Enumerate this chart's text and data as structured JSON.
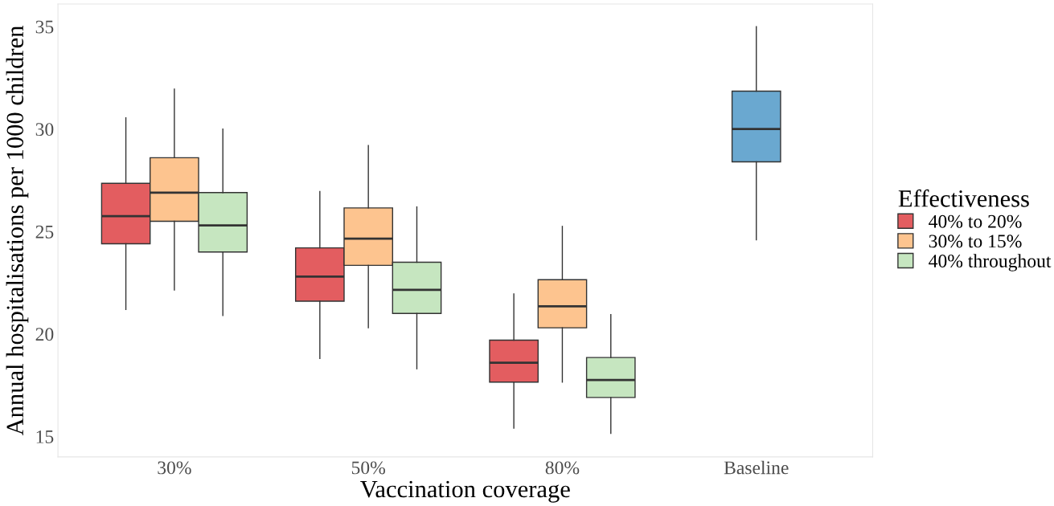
{
  "chart_data": {
    "type": "box",
    "xlabel": "Vaccination coverage",
    "ylabel": "Annual hospitalisations per 1000 children",
    "legend_title": "Effectiveness",
    "legend": "right",
    "grid": false,
    "categories": [
      "30%",
      "50%",
      "80%",
      "Baseline"
    ],
    "ylim": [
      14,
      36.1
    ],
    "yticks": [
      15,
      20,
      25,
      30,
      35
    ],
    "series": [
      {
        "name": "40% to 20%",
        "color": "#e35d60",
        "boxes": [
          {
            "low": 21.2,
            "q1": 24.4,
            "median": 25.75,
            "q3": 27.35,
            "high": 30.55
          },
          {
            "low": 18.8,
            "q1": 21.6,
            "median": 22.8,
            "q3": 24.2,
            "high": 26.95
          },
          {
            "low": 15.4,
            "q1": 17.65,
            "median": 18.6,
            "q3": 19.7,
            "high": 21.95
          },
          null
        ]
      },
      {
        "name": "30% to 15%",
        "color": "#fdc48f",
        "boxes": [
          {
            "low": 22.15,
            "q1": 25.5,
            "median": 26.9,
            "q3": 28.6,
            "high": 31.95
          },
          {
            "low": 20.3,
            "q1": 23.35,
            "median": 24.65,
            "q3": 26.15,
            "high": 29.2
          },
          {
            "low": 17.65,
            "q1": 20.3,
            "median": 21.35,
            "q3": 22.65,
            "high": 25.25
          },
          null
        ]
      },
      {
        "name": "40% throughout",
        "color": "#c6e6c0",
        "boxes": [
          {
            "low": 20.9,
            "q1": 24.0,
            "median": 25.3,
            "q3": 26.9,
            "high": 30.0
          },
          {
            "low": 18.3,
            "q1": 21.0,
            "median": 22.15,
            "q3": 23.5,
            "high": 26.2
          },
          {
            "low": 15.15,
            "q1": 16.9,
            "median": 17.75,
            "q3": 18.85,
            "high": 20.95
          },
          null
        ]
      },
      {
        "color": "#6aa8d0",
        "boxes": [
          null,
          null,
          null,
          {
            "low": 24.6,
            "q1": 28.4,
            "median": 30.0,
            "q3": 31.85,
            "high": 35.0
          }
        ]
      }
    ]
  }
}
